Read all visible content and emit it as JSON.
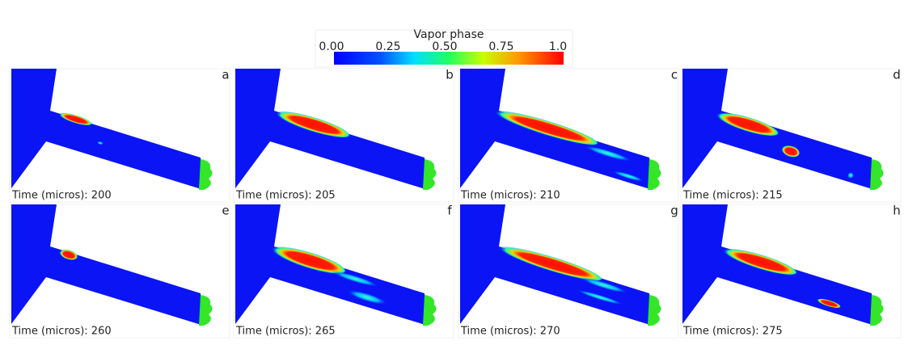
{
  "colorbar": {
    "title": "Vapor phase",
    "ticks": [
      "0.00",
      "0.25",
      "0.50",
      "0.75",
      "1.0"
    ]
  },
  "panels": [
    {
      "letter": "a",
      "time": "Time (micros): 200"
    },
    {
      "letter": "b",
      "time": "Time (micros): 205"
    },
    {
      "letter": "c",
      "time": "Time (micros): 210"
    },
    {
      "letter": "d",
      "time": "Time (micros): 215"
    },
    {
      "letter": "e",
      "time": "Time (micros): 260"
    },
    {
      "letter": "f",
      "time": "Time (micros): 265"
    },
    {
      "letter": "g",
      "time": "Time (micros): 270"
    },
    {
      "letter": "h",
      "time": "Time (micros): 275"
    }
  ]
}
